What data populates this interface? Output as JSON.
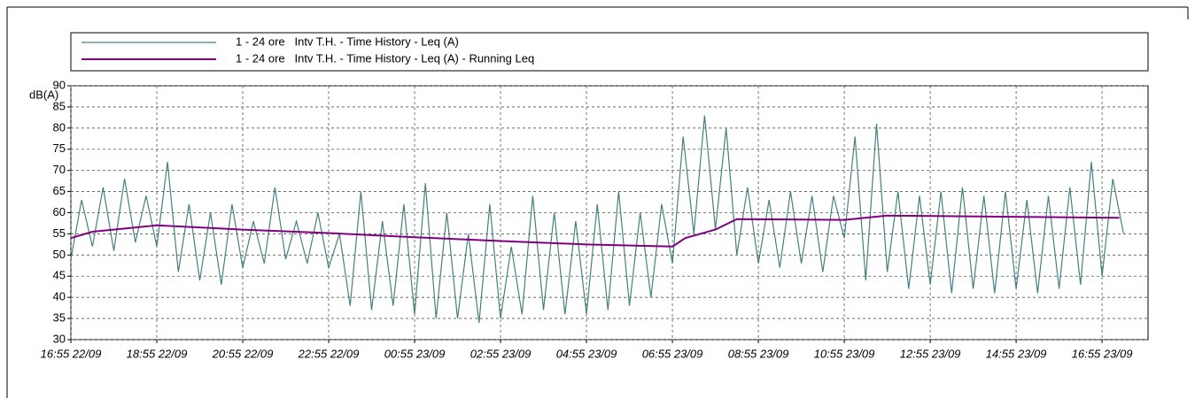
{
  "chart_data": {
    "type": "line",
    "y_label": "dB(A)",
    "series": [
      {
        "name": "1 - 24 ore   Intv T.H. - Time History - Leq (A)",
        "color": "#458080",
        "x": [
          0,
          0.25,
          0.5,
          0.75,
          1,
          1.25,
          1.5,
          1.75,
          2,
          2.25,
          2.5,
          2.75,
          3,
          3.25,
          3.5,
          3.75,
          4,
          4.25,
          4.5,
          4.75,
          5,
          5.25,
          5.5,
          5.75,
          6,
          6.25,
          6.5,
          6.75,
          7,
          7.25,
          7.5,
          7.75,
          8,
          8.25,
          8.5,
          8.75,
          9,
          9.25,
          9.5,
          9.75,
          10,
          10.25,
          10.5,
          10.75,
          11,
          11.25,
          11.5,
          11.75,
          12,
          12.25,
          12.5,
          12.75,
          13,
          13.25,
          13.5,
          13.75,
          14,
          14.25,
          14.5,
          14.75,
          15,
          15.25,
          15.5,
          15.75,
          16,
          16.25,
          16.5,
          16.75,
          17,
          17.25,
          17.5,
          17.75,
          18,
          18.25,
          18.5,
          18.75,
          19,
          19.25,
          19.5,
          19.75,
          20,
          20.25,
          20.5,
          20.75,
          21,
          21.25,
          21.5,
          21.75,
          22,
          22.25,
          22.5,
          22.75,
          23,
          23.25,
          23.5,
          23.75,
          24,
          24.25,
          24.5
        ],
        "values": [
          49,
          63,
          52,
          66,
          51,
          68,
          53,
          64,
          52,
          72,
          46,
          62,
          44,
          60,
          43,
          62,
          47,
          58,
          48,
          66,
          49,
          58,
          48,
          60,
          47,
          55,
          38,
          65,
          37,
          58,
          38,
          62,
          36,
          67,
          35,
          60,
          35,
          55,
          34,
          62,
          35,
          52,
          36,
          64,
          37,
          60,
          36,
          58,
          36,
          62,
          37,
          65,
          38,
          60,
          40,
          62,
          48,
          78,
          55,
          83,
          56,
          80,
          50,
          66,
          48,
          63,
          47,
          65,
          48,
          64,
          46,
          64,
          54,
          78,
          44,
          81,
          46,
          65,
          42,
          64,
          43,
          65,
          41,
          66,
          42,
          64,
          41,
          65,
          42,
          63,
          41,
          64,
          42,
          66,
          43,
          72,
          45,
          68,
          55
        ]
      },
      {
        "name": "1 - 24 ore   Intv T.H. - Time History - Leq (A) - Running Leq",
        "color": "#800080",
        "x": [
          0,
          0.5,
          1,
          2,
          4,
          6,
          8,
          10,
          12,
          14,
          14.3,
          15,
          15.5,
          18,
          19,
          24.4
        ],
        "values": [
          54,
          55.5,
          56,
          57,
          56,
          55.2,
          54.2,
          53.3,
          52.5,
          52,
          54,
          56,
          58.5,
          58.3,
          59.3,
          58.8
        ]
      }
    ],
    "xlim": [
      0,
      25.07
    ],
    "xticks": [
      {
        "value": 0,
        "label": "16:55 22/09"
      },
      {
        "value": 2,
        "label": "18:55 22/09"
      },
      {
        "value": 4,
        "label": "20:55 22/09"
      },
      {
        "value": 6,
        "label": "22:55 22/09"
      },
      {
        "value": 8,
        "label": "00:55 23/09"
      },
      {
        "value": 10,
        "label": "02:55 23/09"
      },
      {
        "value": 12,
        "label": "04:55 23/09"
      },
      {
        "value": 14,
        "label": "06:55 23/09"
      },
      {
        "value": 16,
        "label": "08:55 23/09"
      },
      {
        "value": 18,
        "label": "10:55 23/09"
      },
      {
        "value": 20,
        "label": "12:55 23/09"
      },
      {
        "value": 22,
        "label": "14:55 23/09"
      },
      {
        "value": 24,
        "label": "16:55 23/09"
      }
    ],
    "ylim": [
      30,
      90
    ],
    "yticks": [
      30,
      35,
      40,
      45,
      50,
      55,
      60,
      65,
      70,
      75,
      80,
      85,
      90
    ],
    "grid": true
  }
}
